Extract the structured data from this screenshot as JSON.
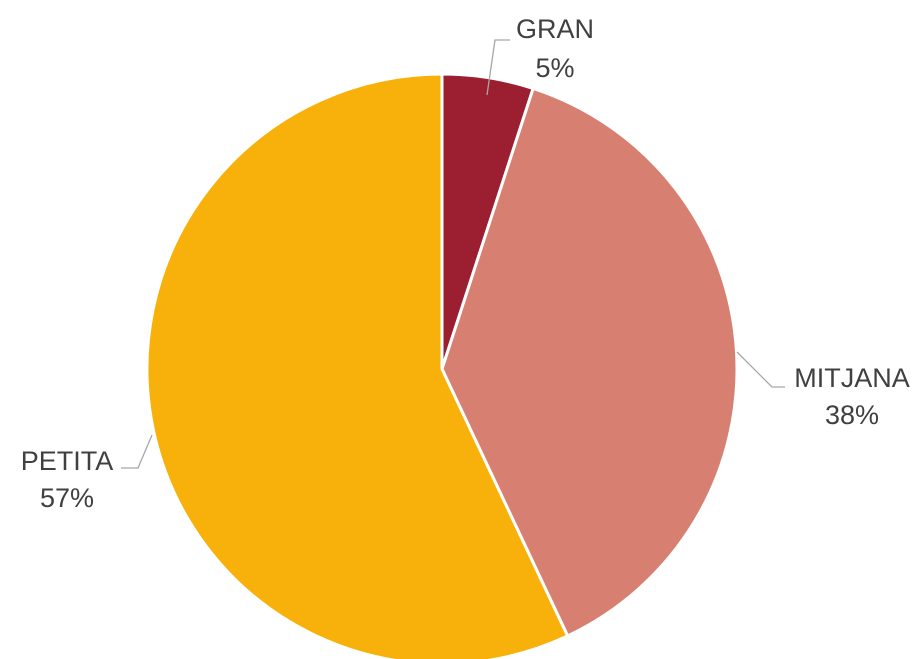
{
  "chart_data": {
    "type": "pie",
    "title": "",
    "legend": "none",
    "slices": [
      {
        "label": "GRAN",
        "value": 5,
        "display": "5%",
        "color": "#9b1f30"
      },
      {
        "label": "MITJANA",
        "value": 38,
        "display": "38%",
        "color": "#d77f71"
      },
      {
        "label": "PETITA",
        "value": 57,
        "display": "57%",
        "color": "#f8b10a"
      }
    ]
  }
}
